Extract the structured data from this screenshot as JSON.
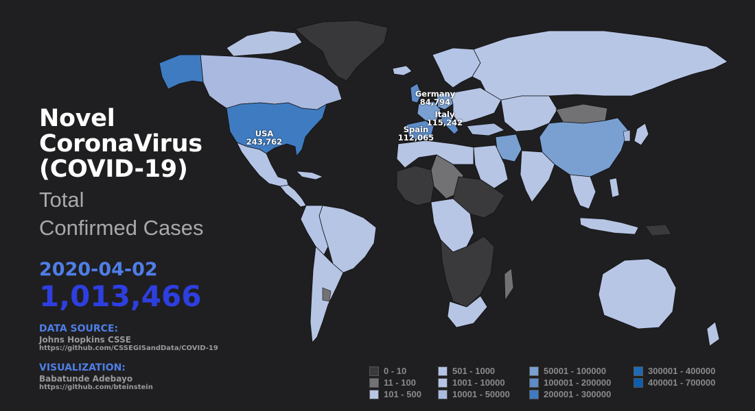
{
  "title_lines": [
    "Novel",
    "CoronaVirus",
    "(COVID-19)"
  ],
  "subtitle_lines": [
    "Total",
    "Confirmed Cases"
  ],
  "date": "2020-04-02",
  "total_cases": "1,013,466",
  "data_source": {
    "heading": "DATA SOURCE:",
    "name": "Johns Hopkins CSSE",
    "url": "https://github.com/CSSEGISandData/COVID-19"
  },
  "visualization": {
    "heading": "VISUALIZATION:",
    "name": "Babatunde Adebayo",
    "url": "https://github.com/bteinstein"
  },
  "callouts": [
    {
      "country": "USA",
      "value": "243,762"
    },
    {
      "country": "Germany",
      "value": "84,794"
    },
    {
      "country": "Italy",
      "value": "115,242"
    },
    {
      "country": "Spain",
      "value": "112,065"
    }
  ],
  "legend": [
    {
      "label": "0 - 10",
      "color": "#3a3a3c"
    },
    {
      "label": "11 - 100",
      "color": "#727275"
    },
    {
      "label": "101 - 500",
      "color": "#b8c6e6"
    },
    {
      "label": "501 - 1000",
      "color": "#b4c4e6"
    },
    {
      "label": "1001 - 10000",
      "color": "#b6c5e4"
    },
    {
      "label": "10001 - 50000",
      "color": "#aabbe0"
    },
    {
      "label": "50001 - 100000",
      "color": "#7aa0d2"
    },
    {
      "label": "100001 - 200000",
      "color": "#5d8cc8"
    },
    {
      "label": "200001 - 300000",
      "color": "#3f7bc0"
    },
    {
      "label": "300001 - 400000",
      "color": "#1f6ab5"
    },
    {
      "label": "400001 - 700000",
      "color": "#0b5fae"
    }
  ]
}
